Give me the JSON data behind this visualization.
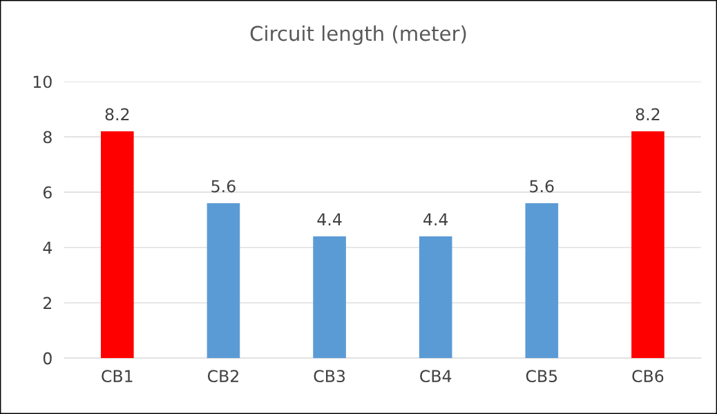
{
  "chart_data": {
    "type": "bar",
    "title": "Circuit length (meter)",
    "categories": [
      "CB1",
      "CB2",
      "CB3",
      "CB4",
      "CB5",
      "CB6"
    ],
    "values": [
      8.2,
      5.6,
      4.4,
      4.4,
      5.6,
      8.2
    ],
    "colors": [
      "#ff0000",
      "#5b9bd5",
      "#5b9bd5",
      "#5b9bd5",
      "#5b9bd5",
      "#ff0000"
    ],
    "ylim": [
      0,
      10
    ],
    "yticks": [
      0,
      2,
      4,
      6,
      8,
      10
    ],
    "grid": "y",
    "data_labels": true
  }
}
